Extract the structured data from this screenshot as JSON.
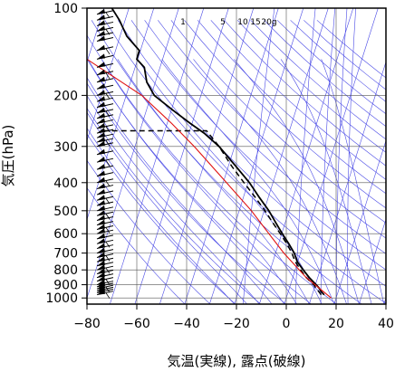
{
  "chart_data": {
    "type": "line",
    "title": "",
    "xlabel": "気温(実線), 露点(破線)",
    "ylabel": "気圧(hPa)",
    "xlim": [
      -80,
      40
    ],
    "ylim_hpa": [
      1050,
      100
    ],
    "y_scale": "log",
    "grid": true,
    "x_ticks": [
      "−80",
      "−60",
      "−40",
      "−20",
      "0",
      "20",
      "40"
    ],
    "x_tick_values": [
      -80,
      -60,
      -40,
      -20,
      0,
      20,
      40
    ],
    "y_ticks": [
      100,
      200,
      300,
      400,
      500,
      600,
      700,
      800,
      900,
      1000
    ],
    "mixing_ratio_labels": [
      "1",
      "5",
      "10",
      "15",
      "20g"
    ],
    "mixing_ratio_values": [
      1,
      5,
      10,
      15,
      20
    ],
    "series": [
      {
        "style": "solid-black",
        "points": [
          {
            "p": 975,
            "t": 15.2
          },
          {
            "p": 950,
            "t": 14.0
          },
          {
            "p": 925,
            "t": 13.2
          },
          {
            "p": 900,
            "t": 12.0
          },
          {
            "p": 850,
            "t": 9.2
          },
          {
            "p": 800,
            "t": 6.8
          },
          {
            "p": 750,
            "t": 4.4
          },
          {
            "p": 700,
            "t": 3.2
          },
          {
            "p": 650,
            "t": 1.0
          },
          {
            "p": 600,
            "t": -1.6
          },
          {
            "p": 550,
            "t": -4.2
          },
          {
            "p": 500,
            "t": -7.0
          },
          {
            "p": 450,
            "t": -10.8
          },
          {
            "p": 400,
            "t": -14.8
          },
          {
            "p": 350,
            "t": -20.4
          },
          {
            "p": 300,
            "t": -27.0
          },
          {
            "p": 270,
            "t": -33.0
          },
          {
            "p": 250,
            "t": -38.5
          },
          {
            "p": 225,
            "t": -45.5
          },
          {
            "p": 200,
            "t": -53.0
          },
          {
            "p": 180,
            "t": -56.0
          },
          {
            "p": 160,
            "t": -57.0
          },
          {
            "p": 150,
            "t": -60.0
          },
          {
            "p": 140,
            "t": -59.0
          },
          {
            "p": 125,
            "t": -64.0
          },
          {
            "p": 110,
            "t": -67.0
          },
          {
            "p": 100,
            "t": -70.0
          }
        ]
      },
      {
        "style": "dashed-black",
        "points": [
          {
            "p": 975,
            "t": 14.0
          },
          {
            "p": 950,
            "t": 13.0
          },
          {
            "p": 925,
            "t": 12.0
          },
          {
            "p": 900,
            "t": 11.0
          },
          {
            "p": 850,
            "t": 8.0
          },
          {
            "p": 800,
            "t": 5.8
          },
          {
            "p": 750,
            "t": 3.6
          },
          {
            "p": 700,
            "t": 2.2
          },
          {
            "p": 650,
            "t": 0.2
          },
          {
            "p": 600,
            "t": -2.4
          },
          {
            "p": 550,
            "t": -5.4
          },
          {
            "p": 500,
            "t": -8.6
          },
          {
            "p": 450,
            "t": -12.4
          },
          {
            "p": 400,
            "t": -17.0
          },
          {
            "p": 350,
            "t": -22.0
          },
          {
            "p": 300,
            "t": -27.0
          },
          {
            "p": 265,
            "t": -32.0
          },
          {
            "p": 265,
            "t": -75.0
          }
        ]
      },
      {
        "style": "solid-red",
        "points": [
          {
            "p": 1000,
            "t": 18.0
          },
          {
            "p": 850,
            "t": 8.0
          },
          {
            "p": 700,
            "t": -1.0
          },
          {
            "p": 600,
            "t": -7.0
          },
          {
            "p": 500,
            "t": -14.0
          },
          {
            "p": 400,
            "t": -24.0
          },
          {
            "p": 300,
            "t": -37.0
          },
          {
            "p": 250,
            "t": -46.0
          },
          {
            "p": 200,
            "t": -58.0
          },
          {
            "p": 150,
            "t": -80.0
          }
        ]
      }
    ],
    "wind_barb_pressures": [
      105,
      110,
      115,
      120,
      125,
      130,
      140,
      150,
      160,
      170,
      180,
      190,
      200,
      210,
      220,
      230,
      240,
      250,
      260,
      270,
      280,
      290,
      300,
      320,
      340,
      360,
      380,
      400,
      420,
      440,
      460,
      480,
      500,
      520,
      540,
      560,
      580,
      600,
      625,
      650,
      675,
      700,
      725,
      750,
      775,
      800,
      825,
      850,
      875,
      900,
      915,
      930,
      945,
      960,
      975
    ]
  }
}
